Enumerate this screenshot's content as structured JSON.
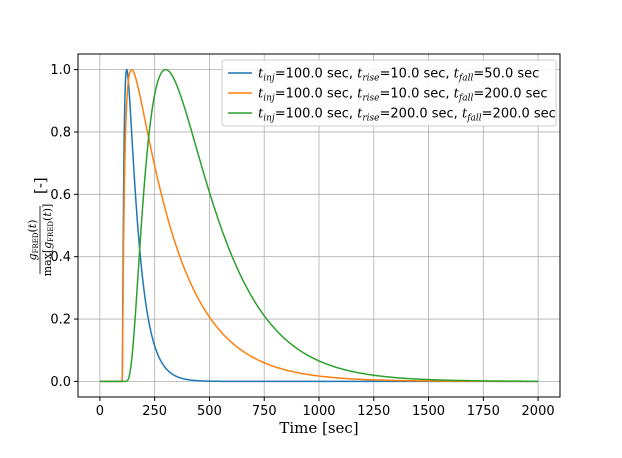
{
  "chart_data": {
    "type": "line",
    "xlabel": "Time [sec]",
    "ylabel": "[-]",
    "xlim": [
      -100,
      2100
    ],
    "ylim": [
      -0.05,
      1.05
    ],
    "grid": true,
    "legend_position": "top-right",
    "x_ticks": [
      0,
      250,
      500,
      750,
      1000,
      1250,
      1500,
      1750,
      2000
    ],
    "y_ticks": [
      0.0,
      0.2,
      0.4,
      0.6,
      0.8,
      1.0
    ],
    "x_tick_labels": [
      "0",
      "250",
      "500",
      "750",
      "1000",
      "1250",
      "1500",
      "1750",
      "2000"
    ],
    "y_tick_labels": [
      "0.0",
      "0.2",
      "0.4",
      "0.6",
      "0.8",
      "1.0"
    ],
    "x_range": [
      0,
      2000
    ],
    "series": [
      {
        "color": "#1f77b4",
        "legend": {
          "a": "t",
          "as": "inj",
          "b": "=100.0 sec, ",
          "c": "t",
          "cs": "rise",
          "d": "=10.0 sec, ",
          "e": "t",
          "es": "fall",
          "f": "=50.0 sec"
        },
        "t_inj": 100,
        "t_rise": 10,
        "t_fall": 50
      },
      {
        "color": "#ff7f0e",
        "legend": {
          "a": "t",
          "as": "inj",
          "b": "=100.0 sec, ",
          "c": "t",
          "cs": "rise",
          "d": "=10.0 sec, ",
          "e": "t",
          "es": "fall",
          "f": "=200.0 sec"
        },
        "t_inj": 100,
        "t_rise": 10,
        "t_fall": 200
      },
      {
        "color": "#2ca02c",
        "legend": {
          "a": "t",
          "as": "inj",
          "b": "=100.0 sec, ",
          "c": "t",
          "cs": "rise",
          "d": "=200.0 sec, ",
          "e": "t",
          "es": "fall",
          "f": "=200.0 sec"
        },
        "t_inj": 100,
        "t_rise": 200,
        "t_fall": 200
      }
    ]
  }
}
